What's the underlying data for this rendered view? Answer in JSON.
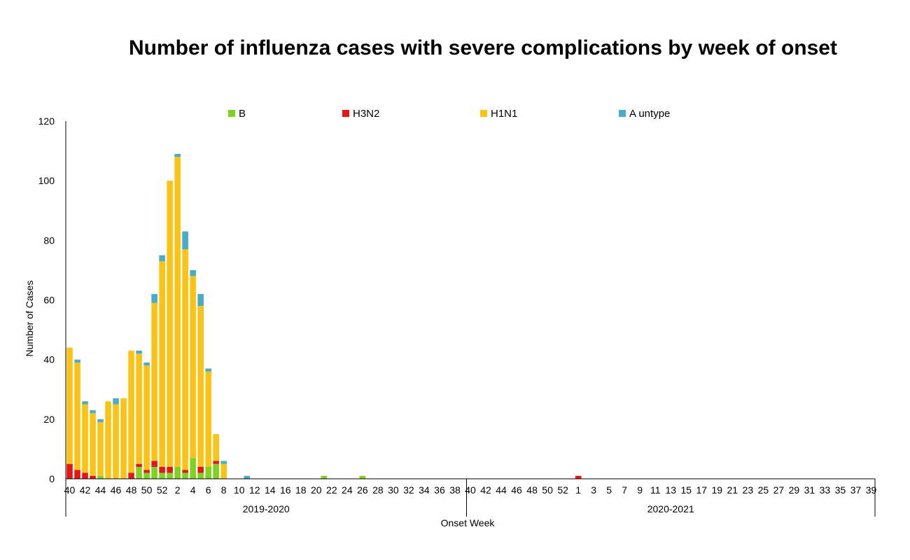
{
  "chart_data": {
    "type": "bar",
    "stacked": true,
    "title": "Number of influenza cases with severe complications by week of onset",
    "xlabel": "Onset Week",
    "ylabel": "Number of Cases",
    "ylim": [
      0,
      120
    ],
    "yticks": [
      0,
      20,
      40,
      60,
      80,
      100,
      120
    ],
    "grid": false,
    "legend_position": "top",
    "seasons": [
      "2019-2020",
      "2020-2021"
    ],
    "categories": [
      "40",
      "41",
      "42",
      "43",
      "44",
      "45",
      "46",
      "47",
      "48",
      "49",
      "50",
      "51",
      "52",
      "1",
      "2",
      "3",
      "4",
      "5",
      "6",
      "7",
      "8",
      "9",
      "10",
      "11",
      "12",
      "13",
      "14",
      "15",
      "16",
      "17",
      "18",
      "19",
      "20",
      "21",
      "22",
      "23",
      "24",
      "25",
      "26",
      "27",
      "28",
      "29",
      "30",
      "31",
      "32",
      "33",
      "34",
      "35",
      "36",
      "37",
      "38",
      "39",
      "40",
      "41",
      "42",
      "43",
      "44",
      "45",
      "46",
      "47",
      "48",
      "49",
      "50",
      "51",
      "52",
      "53",
      "1",
      "2",
      "3",
      "4",
      "5",
      "6",
      "7",
      "8",
      "9",
      "10",
      "11",
      "12",
      "13",
      "14",
      "15",
      "16",
      "17",
      "18",
      "19",
      "20",
      "21",
      "22",
      "23",
      "24",
      "25",
      "26",
      "27",
      "28",
      "29",
      "30",
      "31",
      "32",
      "33",
      "34",
      "35",
      "36",
      "37",
      "38",
      "39"
    ],
    "tick_labels_season1": [
      "40",
      "42",
      "44",
      "46",
      "48",
      "50",
      "52",
      "2",
      "4",
      "6",
      "8",
      "10",
      "12",
      "14",
      "16",
      "18",
      "20",
      "22",
      "24",
      "26",
      "28",
      "30",
      "32",
      "34",
      "36",
      "38"
    ],
    "tick_labels_season2": [
      "40",
      "42",
      "44",
      "46",
      "48",
      "50",
      "52",
      "1",
      "3",
      "5",
      "7",
      "9",
      "11",
      "13",
      "15",
      "17",
      "19",
      "21",
      "23",
      "25",
      "27",
      "29",
      "31",
      "33",
      "35",
      "37",
      "39"
    ],
    "series": [
      {
        "name": "B",
        "color": "#7ed321",
        "values": [
          0,
          0,
          0,
          0,
          1,
          0,
          0,
          0,
          0,
          4,
          2,
          4,
          2,
          2,
          4,
          2,
          7,
          2,
          4,
          5,
          0,
          0,
          0,
          0,
          0,
          0,
          0,
          0,
          0,
          0,
          0,
          0,
          0,
          1,
          0,
          0,
          0,
          0,
          1,
          0,
          0,
          0,
          0,
          0,
          0,
          0,
          0,
          0,
          0,
          0,
          0,
          0,
          0,
          0,
          0,
          0,
          0,
          0,
          0,
          0,
          0,
          0,
          0,
          0,
          0,
          0,
          0,
          0,
          0,
          0,
          0,
          0,
          0,
          0,
          0,
          0,
          0,
          0,
          0,
          0,
          0,
          0,
          0,
          0,
          0,
          0,
          0,
          0,
          0,
          0,
          0,
          0,
          0,
          0,
          0,
          0,
          0,
          0,
          0,
          0,
          0,
          0,
          0,
          0,
          0
        ]
      },
      {
        "name": "H3N2",
        "color": "#e81416",
        "values": [
          5,
          3,
          2,
          1,
          0,
          0,
          0,
          0,
          2,
          1,
          1,
          2,
          2,
          2,
          0,
          1,
          0,
          2,
          0,
          1,
          0,
          0,
          0,
          0,
          0,
          0,
          0,
          0,
          0,
          0,
          0,
          0,
          0,
          0,
          0,
          0,
          0,
          0,
          0,
          0,
          0,
          0,
          0,
          0,
          0,
          0,
          0,
          0,
          0,
          0,
          0,
          0,
          0,
          0,
          0,
          0,
          0,
          0,
          0,
          0,
          0,
          0,
          0,
          0,
          0,
          0,
          1,
          0,
          0,
          0,
          0,
          0,
          0,
          0,
          0,
          0,
          0,
          0,
          0,
          0,
          0,
          0,
          0,
          0,
          0,
          0,
          0,
          0,
          0,
          0,
          0,
          0,
          0,
          0,
          0,
          0,
          0,
          0,
          0,
          0,
          0,
          0,
          0,
          0,
          0
        ]
      },
      {
        "name": "H1N1",
        "color": "#fbc315",
        "values": [
          39,
          36,
          23,
          21,
          18,
          26,
          25,
          27,
          41,
          37,
          35,
          53,
          69,
          96,
          104,
          74,
          61,
          54,
          32,
          9,
          5,
          0,
          0,
          0,
          0,
          0,
          0,
          0,
          0,
          0,
          0,
          0,
          0,
          0,
          0,
          0,
          0,
          0,
          0,
          0,
          0,
          0,
          0,
          0,
          0,
          0,
          0,
          0,
          0,
          0,
          0,
          0,
          0,
          0,
          0,
          0,
          0,
          0,
          0,
          0,
          0,
          0,
          0,
          0,
          0,
          0,
          0,
          0,
          0,
          0,
          0,
          0,
          0,
          0,
          0,
          0,
          0,
          0,
          0,
          0,
          0,
          0,
          0,
          0,
          0,
          0,
          0,
          0,
          0,
          0,
          0,
          0,
          0,
          0,
          0,
          0,
          0,
          0,
          0,
          0,
          0,
          0,
          0,
          0,
          0
        ]
      },
      {
        "name": "A untype",
        "color": "#4aacc6",
        "values": [
          0,
          1,
          1,
          1,
          1,
          0,
          2,
          0,
          0,
          1,
          1,
          3,
          2,
          0,
          1,
          6,
          2,
          4,
          1,
          0,
          1,
          0,
          0,
          1,
          0,
          0,
          0,
          0,
          0,
          0,
          0,
          0,
          0,
          0,
          0,
          0,
          0,
          0,
          0,
          0,
          0,
          0,
          0,
          0,
          0,
          0,
          0,
          0,
          0,
          0,
          0,
          0,
          0,
          0,
          0,
          0,
          0,
          0,
          0,
          0,
          0,
          0,
          0,
          0,
          0,
          0,
          0,
          0,
          0,
          0,
          0,
          0,
          0,
          0,
          0,
          0,
          0,
          0,
          0,
          0,
          0,
          0,
          0,
          0,
          0,
          0,
          0,
          0,
          0,
          0,
          0,
          0,
          0,
          0,
          0,
          0,
          0,
          0,
          0,
          0,
          0,
          0,
          0,
          0,
          0
        ]
      }
    ]
  }
}
